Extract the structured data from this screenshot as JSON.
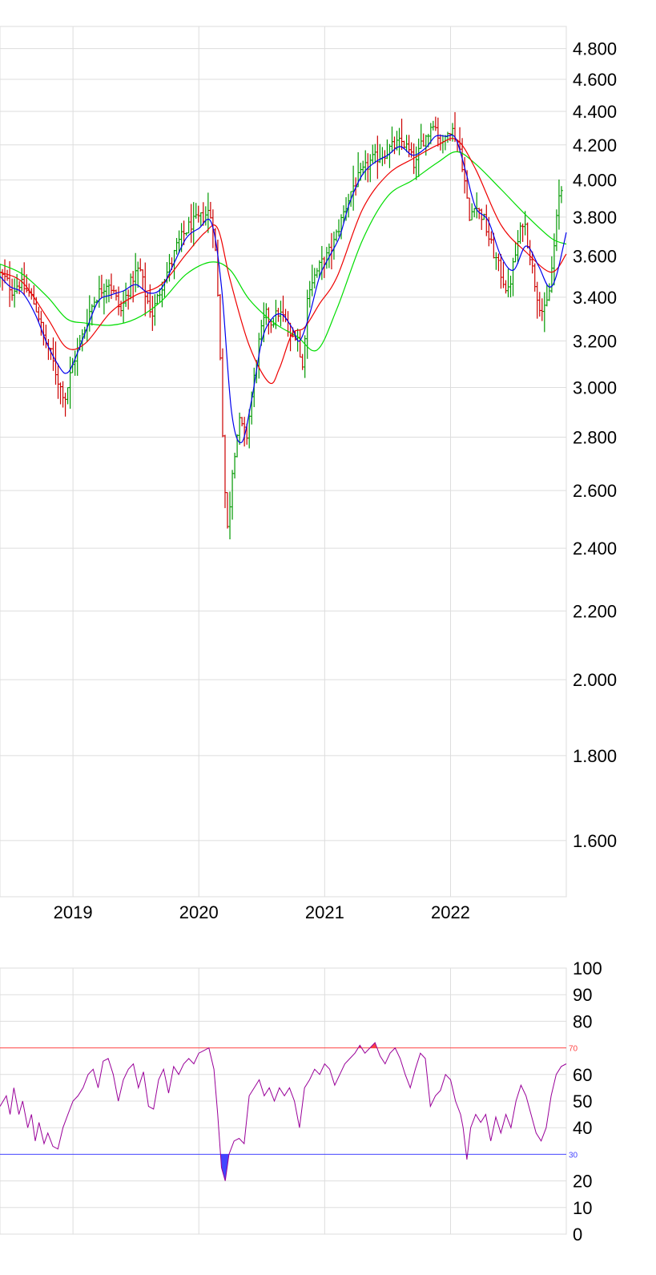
{
  "chart_data": [
    {
      "type": "ohlc",
      "y_scale": "log",
      "ylim": [
        1480,
        4950
      ],
      "y_ticks": [
        1600,
        1800,
        2000,
        2200,
        2400,
        2600,
        2800,
        3000,
        3200,
        3400,
        3600,
        3800,
        4000,
        4200,
        4400,
        4600,
        4800
      ],
      "y_tick_labels": [
        "1.600",
        "1.800",
        "2.000",
        "2.200",
        "2.400",
        "2.600",
        "2.800",
        "3.000",
        "3.200",
        "3.400",
        "3.600",
        "3.800",
        "4.000",
        "4.200",
        "4.400",
        "4.600",
        "4.800"
      ],
      "xlim": [
        2018.42,
        2022.92
      ],
      "x_ticks": [
        2019,
        2020,
        2021,
        2022
      ],
      "x_tick_labels": [
        "2019",
        "2020",
        "2021",
        "2022"
      ],
      "grid": true,
      "colors": {
        "up": "#009900",
        "down": "#cc0000",
        "ma_fast": "#0000ee",
        "ma_mid": "#ee0000",
        "ma_slow": "#00dd00"
      },
      "close": [
        [
          2018.42,
          3510
        ],
        [
          2018.47,
          3480
        ],
        [
          2018.52,
          3430
        ],
        [
          2018.57,
          3470
        ],
        [
          2018.62,
          3440
        ],
        [
          2018.67,
          3400
        ],
        [
          2018.72,
          3330
        ],
        [
          2018.77,
          3210
        ],
        [
          2018.82,
          3150
        ],
        [
          2018.87,
          3050
        ],
        [
          2018.9,
          3000
        ],
        [
          2018.94,
          2960
        ],
        [
          2018.99,
          3080
        ],
        [
          2019.03,
          3150
        ],
        [
          2019.08,
          3230
        ],
        [
          2019.13,
          3330
        ],
        [
          2019.18,
          3400
        ],
        [
          2019.23,
          3440
        ],
        [
          2019.28,
          3480
        ],
        [
          2019.33,
          3410
        ],
        [
          2019.38,
          3330
        ],
        [
          2019.43,
          3420
        ],
        [
          2019.48,
          3500
        ],
        [
          2019.53,
          3540
        ],
        [
          2019.58,
          3400
        ],
        [
          2019.63,
          3320
        ],
        [
          2019.68,
          3410
        ],
        [
          2019.73,
          3500
        ],
        [
          2019.78,
          3560
        ],
        [
          2019.83,
          3660
        ],
        [
          2019.88,
          3710
        ],
        [
          2019.93,
          3760
        ],
        [
          2019.98,
          3780
        ],
        [
          2020.03,
          3800
        ],
        [
          2020.08,
          3830
        ],
        [
          2020.12,
          3750
        ],
        [
          2020.16,
          3300
        ],
        [
          2020.2,
          2650
        ],
        [
          2020.23,
          2450
        ],
        [
          2020.27,
          2700
        ],
        [
          2020.32,
          2860
        ],
        [
          2020.38,
          2800
        ],
        [
          2020.43,
          3000
        ],
        [
          2020.48,
          3200
        ],
        [
          2020.53,
          3320
        ],
        [
          2020.58,
          3280
        ],
        [
          2020.63,
          3330
        ],
        [
          2020.68,
          3300
        ],
        [
          2020.73,
          3200
        ],
        [
          2020.78,
          3250
        ],
        [
          2020.82,
          3050
        ],
        [
          2020.87,
          3450
        ],
        [
          2020.92,
          3500
        ],
        [
          2020.97,
          3560
        ],
        [
          2021.02,
          3600
        ],
        [
          2021.07,
          3660
        ],
        [
          2021.12,
          3760
        ],
        [
          2021.17,
          3860
        ],
        [
          2021.22,
          3960
        ],
        [
          2021.27,
          4010
        ],
        [
          2021.32,
          4060
        ],
        [
          2021.37,
          4110
        ],
        [
          2021.42,
          4130
        ],
        [
          2021.47,
          4150
        ],
        [
          2021.52,
          4180
        ],
        [
          2021.57,
          4200
        ],
        [
          2021.62,
          4220
        ],
        [
          2021.67,
          4160
        ],
        [
          2021.72,
          4070
        ],
        [
          2021.77,
          4220
        ],
        [
          2021.82,
          4260
        ],
        [
          2021.86,
          4350
        ],
        [
          2021.9,
          4260
        ],
        [
          2021.94,
          4190
        ],
        [
          2021.98,
          4310
        ],
        [
          2022.02,
          4280
        ],
        [
          2022.05,
          4230
        ],
        [
          2022.08,
          4160
        ],
        [
          2022.12,
          3950
        ],
        [
          2022.15,
          3780
        ],
        [
          2022.19,
          3880
        ],
        [
          2022.22,
          3830
        ],
        [
          2022.26,
          3800
        ],
        [
          2022.3,
          3700
        ],
        [
          2022.34,
          3620
        ],
        [
          2022.38,
          3550
        ],
        [
          2022.42,
          3480
        ],
        [
          2022.46,
          3420
        ],
        [
          2022.5,
          3560
        ],
        [
          2022.54,
          3680
        ],
        [
          2022.58,
          3800
        ],
        [
          2022.62,
          3650
        ],
        [
          2022.66,
          3500
        ],
        [
          2022.7,
          3380
        ],
        [
          2022.74,
          3320
        ],
        [
          2022.78,
          3400
        ],
        [
          2022.82,
          3620
        ],
        [
          2022.86,
          3900
        ],
        [
          2022.9,
          3990
        ]
      ],
      "ma_fast": [
        [
          2018.42,
          3500
        ],
        [
          2018.5,
          3450
        ],
        [
          2018.6,
          3420
        ],
        [
          2018.7,
          3320
        ],
        [
          2018.8,
          3180
        ],
        [
          2018.9,
          3080
        ],
        [
          2018.95,
          3060
        ],
        [
          2019.0,
          3100
        ],
        [
          2019.1,
          3240
        ],
        [
          2019.2,
          3380
        ],
        [
          2019.3,
          3410
        ],
        [
          2019.4,
          3430
        ],
        [
          2019.5,
          3460
        ],
        [
          2019.6,
          3420
        ],
        [
          2019.7,
          3440
        ],
        [
          2019.8,
          3560
        ],
        [
          2019.9,
          3690
        ],
        [
          2020.0,
          3740
        ],
        [
          2020.1,
          3770
        ],
        [
          2020.18,
          3450
        ],
        [
          2020.26,
          2900
        ],
        [
          2020.34,
          2780
        ],
        [
          2020.42,
          2950
        ],
        [
          2020.5,
          3200
        ],
        [
          2020.58,
          3300
        ],
        [
          2020.66,
          3320
        ],
        [
          2020.74,
          3260
        ],
        [
          2020.8,
          3200
        ],
        [
          2020.88,
          3320
        ],
        [
          2020.96,
          3500
        ],
        [
          2021.04,
          3600
        ],
        [
          2021.12,
          3700
        ],
        [
          2021.2,
          3880
        ],
        [
          2021.3,
          4030
        ],
        [
          2021.4,
          4100
        ],
        [
          2021.5,
          4140
        ],
        [
          2021.6,
          4190
        ],
        [
          2021.7,
          4140
        ],
        [
          2021.8,
          4180
        ],
        [
          2021.88,
          4250
        ],
        [
          2021.96,
          4250
        ],
        [
          2022.04,
          4240
        ],
        [
          2022.12,
          4050
        ],
        [
          2022.2,
          3850
        ],
        [
          2022.3,
          3780
        ],
        [
          2022.4,
          3600
        ],
        [
          2022.5,
          3530
        ],
        [
          2022.6,
          3650
        ],
        [
          2022.7,
          3550
        ],
        [
          2022.78,
          3450
        ],
        [
          2022.84,
          3500
        ],
        [
          2022.92,
          3720
        ]
      ],
      "ma_mid": [
        [
          2018.42,
          3520
        ],
        [
          2018.6,
          3470
        ],
        [
          2018.8,
          3300
        ],
        [
          2018.95,
          3170
        ],
        [
          2019.1,
          3190
        ],
        [
          2019.3,
          3330
        ],
        [
          2019.5,
          3410
        ],
        [
          2019.7,
          3460
        ],
        [
          2019.9,
          3610
        ],
        [
          2020.05,
          3720
        ],
        [
          2020.15,
          3740
        ],
        [
          2020.25,
          3480
        ],
        [
          2020.4,
          3180
        ],
        [
          2020.56,
          3020
        ],
        [
          2020.64,
          3080
        ],
        [
          2020.74,
          3230
        ],
        [
          2020.84,
          3260
        ],
        [
          2020.96,
          3370
        ],
        [
          2021.1,
          3500
        ],
        [
          2021.3,
          3840
        ],
        [
          2021.5,
          4030
        ],
        [
          2021.7,
          4120
        ],
        [
          2021.9,
          4200
        ],
        [
          2022.05,
          4230
        ],
        [
          2022.2,
          4060
        ],
        [
          2022.4,
          3760
        ],
        [
          2022.6,
          3620
        ],
        [
          2022.8,
          3520
        ],
        [
          2022.92,
          3610
        ]
      ],
      "ma_slow": [
        [
          2018.42,
          3560
        ],
        [
          2018.6,
          3510
        ],
        [
          2018.8,
          3400
        ],
        [
          2018.95,
          3300
        ],
        [
          2019.1,
          3280
        ],
        [
          2019.3,
          3270
        ],
        [
          2019.5,
          3300
        ],
        [
          2019.7,
          3380
        ],
        [
          2019.9,
          3510
        ],
        [
          2020.1,
          3570
        ],
        [
          2020.25,
          3530
        ],
        [
          2020.4,
          3390
        ],
        [
          2020.6,
          3280
        ],
        [
          2020.78,
          3220
        ],
        [
          2020.94,
          3160
        ],
        [
          2021.1,
          3350
        ],
        [
          2021.3,
          3680
        ],
        [
          2021.5,
          3910
        ],
        [
          2021.7,
          4000
        ],
        [
          2021.9,
          4100
        ],
        [
          2022.05,
          4160
        ],
        [
          2022.2,
          4090
        ],
        [
          2022.4,
          3950
        ],
        [
          2022.6,
          3810
        ],
        [
          2022.8,
          3690
        ],
        [
          2022.92,
          3660
        ]
      ]
    },
    {
      "type": "line",
      "ylim": [
        0,
        100
      ],
      "y_ticks": [
        0,
        10,
        20,
        40,
        50,
        60,
        80,
        90,
        100
      ],
      "y_tick_labels": [
        "0",
        "10",
        "20",
        "40",
        "50",
        "60",
        "80",
        "90",
        "100"
      ],
      "xlim": [
        2018.42,
        2022.92
      ],
      "grid": true,
      "levels": [
        {
          "value": 70,
          "label": "70",
          "color": "#ff4444"
        },
        {
          "value": 30,
          "label": "30",
          "color": "#4444ff"
        }
      ],
      "line_color": "#990099",
      "values": [
        [
          2018.42,
          48
        ],
        [
          2018.47,
          52
        ],
        [
          2018.5,
          45
        ],
        [
          2018.53,
          55
        ],
        [
          2018.57,
          45
        ],
        [
          2018.6,
          50
        ],
        [
          2018.64,
          40
        ],
        [
          2018.67,
          45
        ],
        [
          2018.7,
          35
        ],
        [
          2018.73,
          42
        ],
        [
          2018.77,
          34
        ],
        [
          2018.8,
          38
        ],
        [
          2018.84,
          33
        ],
        [
          2018.88,
          32
        ],
        [
          2018.92,
          40
        ],
        [
          2018.96,
          45
        ],
        [
          2019.0,
          50
        ],
        [
          2019.04,
          52
        ],
        [
          2019.08,
          55
        ],
        [
          2019.12,
          60
        ],
        [
          2019.16,
          62
        ],
        [
          2019.2,
          55
        ],
        [
          2019.24,
          65
        ],
        [
          2019.28,
          66
        ],
        [
          2019.32,
          60
        ],
        [
          2019.36,
          50
        ],
        [
          2019.4,
          58
        ],
        [
          2019.44,
          62
        ],
        [
          2019.48,
          64
        ],
        [
          2019.52,
          55
        ],
        [
          2019.56,
          61
        ],
        [
          2019.6,
          48
        ],
        [
          2019.64,
          47
        ],
        [
          2019.68,
          58
        ],
        [
          2019.72,
          62
        ],
        [
          2019.76,
          53
        ],
        [
          2019.8,
          63
        ],
        [
          2019.84,
          60
        ],
        [
          2019.88,
          64
        ],
        [
          2019.92,
          66
        ],
        [
          2019.96,
          64
        ],
        [
          2020.0,
          68
        ],
        [
          2020.04,
          69
        ],
        [
          2020.08,
          70
        ],
        [
          2020.12,
          62
        ],
        [
          2020.15,
          45
        ],
        [
          2020.18,
          25
        ],
        [
          2020.21,
          20
        ],
        [
          2020.24,
          30
        ],
        [
          2020.28,
          35
        ],
        [
          2020.32,
          36
        ],
        [
          2020.36,
          34
        ],
        [
          2020.4,
          52
        ],
        [
          2020.44,
          55
        ],
        [
          2020.48,
          58
        ],
        [
          2020.52,
          52
        ],
        [
          2020.56,
          55
        ],
        [
          2020.6,
          50
        ],
        [
          2020.64,
          55
        ],
        [
          2020.68,
          52
        ],
        [
          2020.72,
          55
        ],
        [
          2020.76,
          50
        ],
        [
          2020.8,
          40
        ],
        [
          2020.84,
          55
        ],
        [
          2020.88,
          58
        ],
        [
          2020.92,
          62
        ],
        [
          2020.96,
          60
        ],
        [
          2021.0,
          64
        ],
        [
          2021.04,
          62
        ],
        [
          2021.08,
          56
        ],
        [
          2021.12,
          60
        ],
        [
          2021.16,
          64
        ],
        [
          2021.2,
          66
        ],
        [
          2021.24,
          68
        ],
        [
          2021.28,
          71
        ],
        [
          2021.32,
          68
        ],
        [
          2021.36,
          70
        ],
        [
          2021.4,
          72
        ],
        [
          2021.44,
          67
        ],
        [
          2021.48,
          64
        ],
        [
          2021.52,
          68
        ],
        [
          2021.56,
          70
        ],
        [
          2021.6,
          66
        ],
        [
          2021.64,
          60
        ],
        [
          2021.68,
          55
        ],
        [
          2021.72,
          62
        ],
        [
          2021.76,
          68
        ],
        [
          2021.8,
          66
        ],
        [
          2021.84,
          48
        ],
        [
          2021.88,
          52
        ],
        [
          2021.92,
          54
        ],
        [
          2021.96,
          60
        ],
        [
          2022.0,
          58
        ],
        [
          2022.04,
          50
        ],
        [
          2022.08,
          45
        ],
        [
          2022.1,
          40
        ],
        [
          2022.13,
          28
        ],
        [
          2022.16,
          40
        ],
        [
          2022.2,
          45
        ],
        [
          2022.24,
          42
        ],
        [
          2022.28,
          45
        ],
        [
          2022.32,
          35
        ],
        [
          2022.36,
          44
        ],
        [
          2022.4,
          38
        ],
        [
          2022.44,
          45
        ],
        [
          2022.48,
          40
        ],
        [
          2022.52,
          50
        ],
        [
          2022.56,
          56
        ],
        [
          2022.6,
          52
        ],
        [
          2022.64,
          45
        ],
        [
          2022.68,
          38
        ],
        [
          2022.72,
          35
        ],
        [
          2022.76,
          40
        ],
        [
          2022.8,
          52
        ],
        [
          2022.84,
          60
        ],
        [
          2022.88,
          63
        ],
        [
          2022.92,
          64
        ]
      ]
    }
  ]
}
